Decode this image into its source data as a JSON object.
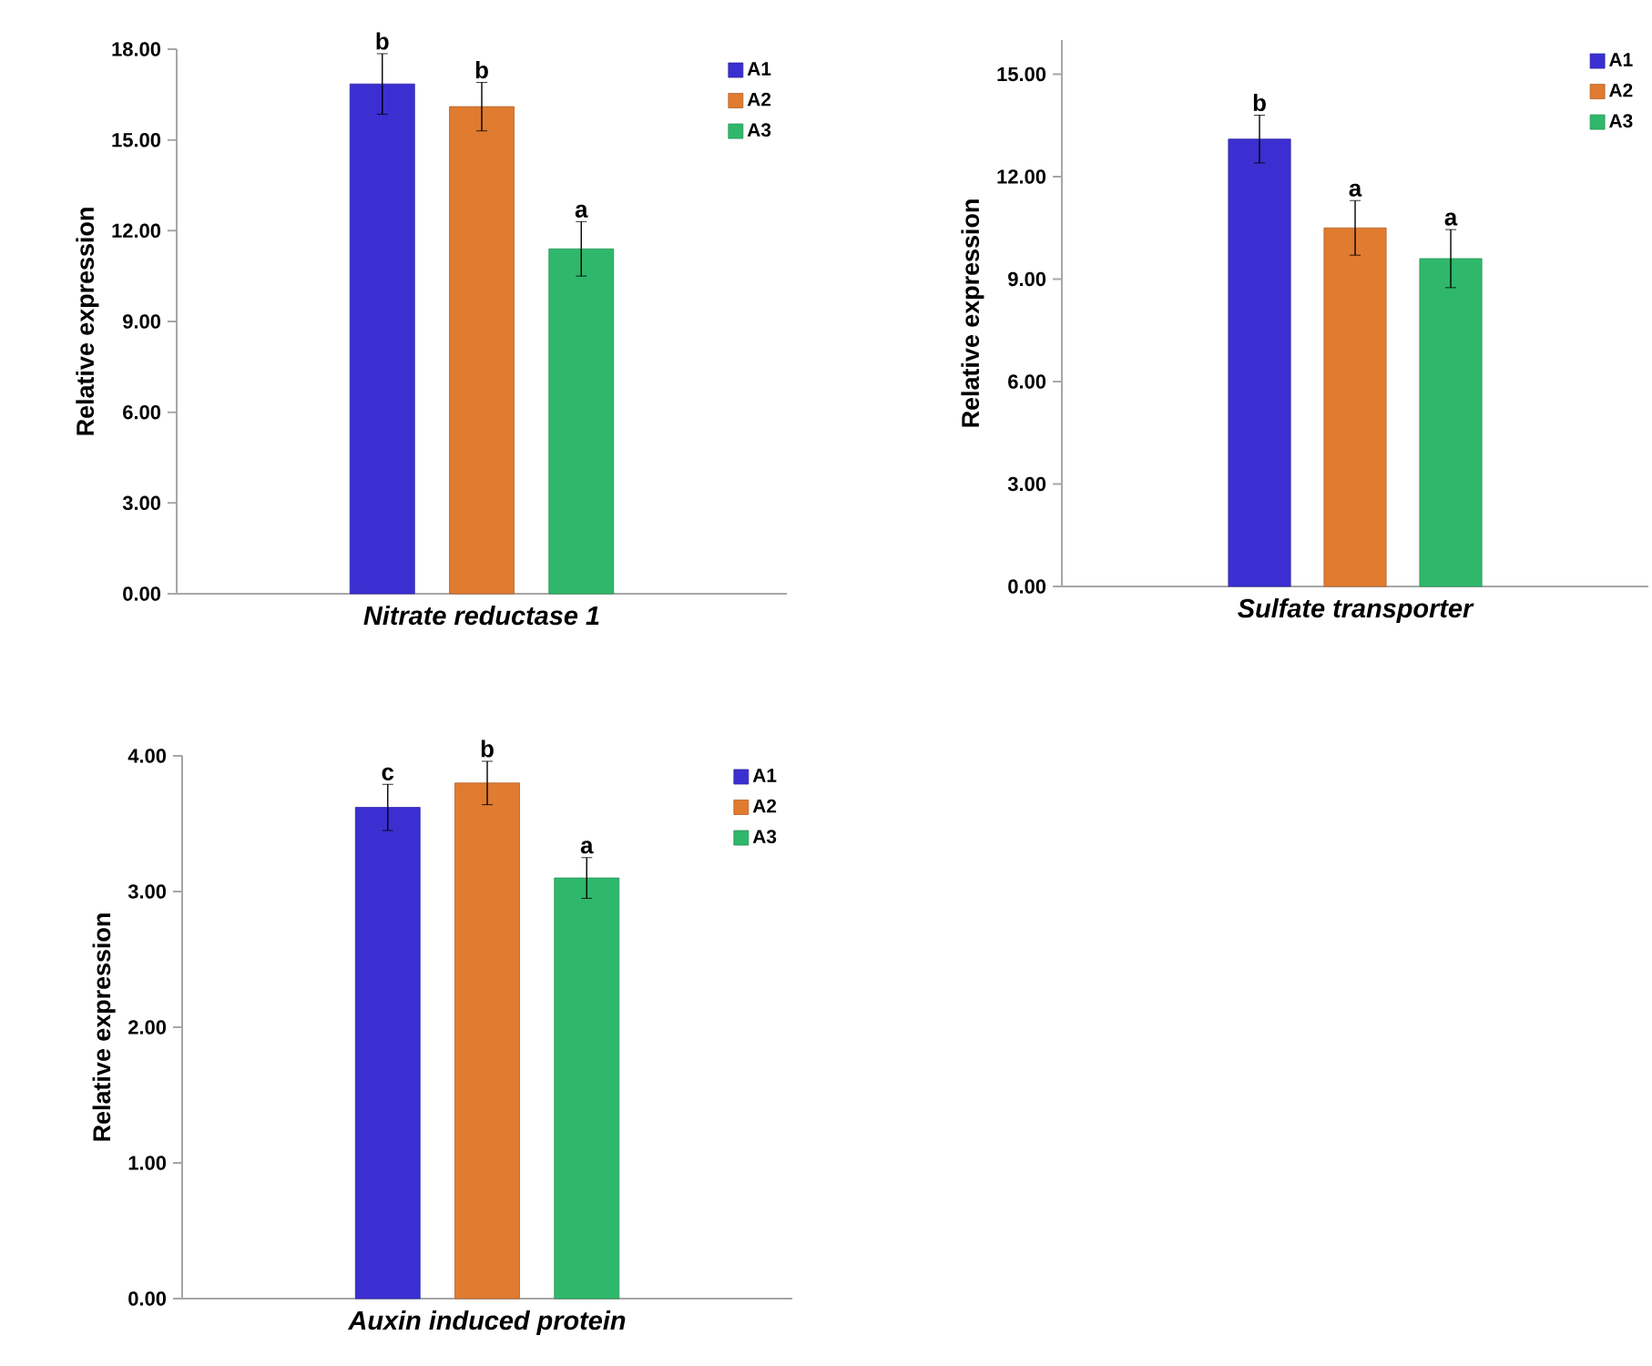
{
  "chart_data": [
    {
      "type": "bar",
      "xlabel": "*Nitrate reductase 1*",
      "ylabel": "Relative expression",
      "categories": [
        null
      ],
      "ylim": [
        0,
        18
      ],
      "yticks": [
        {
          "value": 0,
          "label": "0.00"
        },
        {
          "value": 3,
          "label": "3.00"
        },
        {
          "value": 6,
          "label": "6.00"
        },
        {
          "value": 9,
          "label": "9.00"
        },
        {
          "value": 12,
          "label": "12.00"
        },
        {
          "value": 15,
          "label": "15.00"
        },
        {
          "value": 18,
          "label": "18.00"
        }
      ],
      "legend": "top right",
      "series": [
        {
          "name": "A1",
          "color": "#3b2fd1",
          "values": [
            16.85
          ],
          "errors": [
            1.0
          ]
        },
        {
          "name": "A2",
          "color": "#e07b30",
          "values": [
            16.1
          ],
          "errors": [
            0.8
          ]
        },
        {
          "name": "A3",
          "color": "#2fb86b",
          "values": [
            11.4
          ],
          "errors": [
            0.9
          ]
        }
      ],
      "annotations": [
        {
          "text": "b",
          "y": 17.85
        },
        {
          "text": "b",
          "y": 16.9
        },
        {
          "text": "a",
          "y": 12.3
        }
      ]
    },
    {
      "type": "bar",
      "xlabel": "*Sulfate transporter*",
      "ylabel": "Relative expression",
      "categories": [
        null
      ],
      "ylim": [
        0,
        16
      ],
      "yticks": [
        {
          "value": 0,
          "label": "0.00"
        },
        {
          "value": 3,
          "label": "3.00"
        },
        {
          "value": 6,
          "label": "6.00"
        },
        {
          "value": 9,
          "label": "9.00"
        },
        {
          "value": 12,
          "label": "12.00"
        },
        {
          "value": 15,
          "label": "15.00"
        }
      ],
      "legend": "top right",
      "series": [
        {
          "name": "A1",
          "color": "#3b2fd1",
          "values": [
            13.1
          ],
          "errors": [
            0.7
          ]
        },
        {
          "name": "A2",
          "color": "#e07b30",
          "values": [
            10.5
          ],
          "errors": [
            0.8
          ]
        },
        {
          "name": "A3",
          "color": "#2fb86b",
          "values": [
            9.6
          ],
          "errors": [
            0.85
          ]
        }
      ],
      "annotations": [
        {
          "text": "b",
          "y": 13.8
        },
        {
          "text": "a",
          "y": 11.3
        },
        {
          "text": "a",
          "y": 10.45
        }
      ]
    },
    {
      "type": "bar",
      "xlabel": "*Auxin induced protein*",
      "ylabel": "Relative expression",
      "categories": [
        null
      ],
      "ylim": [
        0,
        4
      ],
      "yticks": [
        {
          "value": 0,
          "label": "0.00"
        },
        {
          "value": 1,
          "label": "1.00"
        },
        {
          "value": 2,
          "label": "2.00"
        },
        {
          "value": 3,
          "label": "3.00"
        },
        {
          "value": 4,
          "label": "4.00"
        }
      ],
      "legend": "top right",
      "series": [
        {
          "name": "A1",
          "color": "#3b2fd1",
          "values": [
            3.62
          ],
          "errors": [
            0.17
          ]
        },
        {
          "name": "A2",
          "color": "#e07b30",
          "values": [
            3.8
          ],
          "errors": [
            0.16
          ]
        },
        {
          "name": "A3",
          "color": "#2fb86b",
          "values": [
            3.1
          ],
          "errors": [
            0.15
          ]
        }
      ],
      "annotations": [
        {
          "text": "c",
          "y": 3.79
        },
        {
          "text": "b",
          "y": 3.96
        },
        {
          "text": "a",
          "y": 3.25
        }
      ]
    }
  ]
}
